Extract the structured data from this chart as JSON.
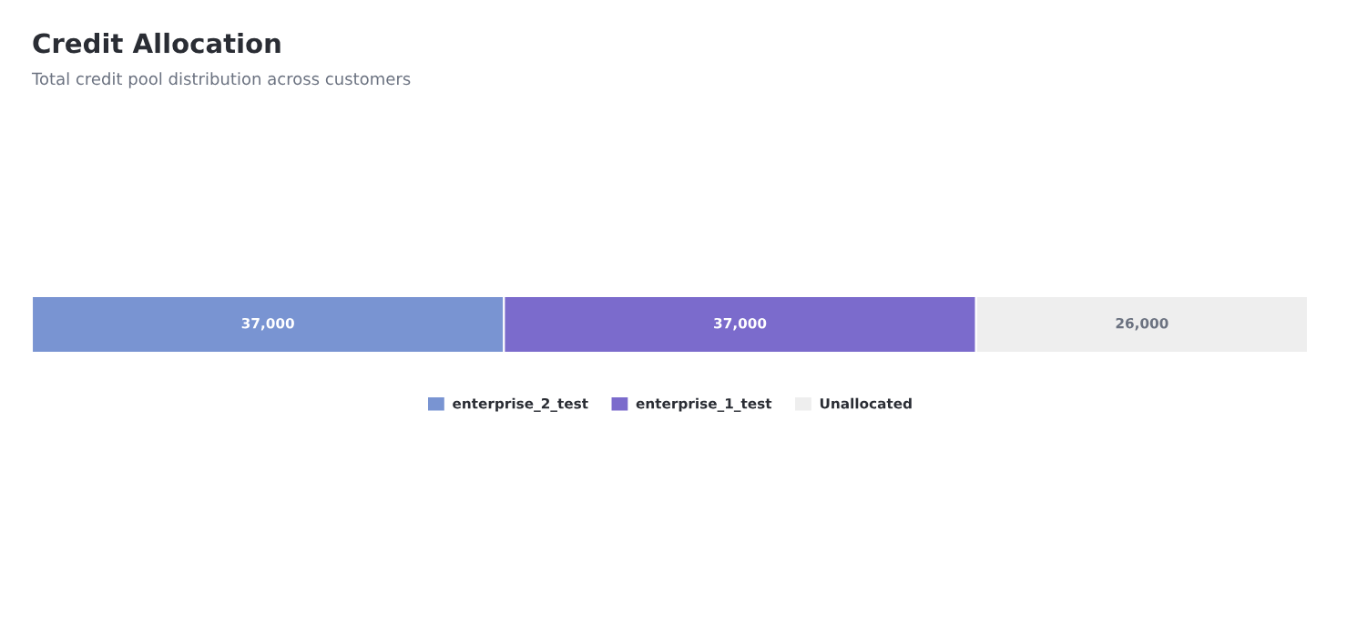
{
  "chart_data": {
    "type": "bar",
    "title": "Credit Allocation",
    "subtitle": "Total credit pool distribution across customers",
    "orientation": "horizontal",
    "stacked": true,
    "categories": [
      null
    ],
    "tick_labels": false,
    "legend": "bottom",
    "series": [
      {
        "name": "enterprise_2_test",
        "color": "#7994d2",
        "values": [
          37000
        ],
        "value_labels": [
          "37,000"
        ]
      },
      {
        "name": "enterprise_1_test",
        "color": "#7b6bcc",
        "values": [
          37000
        ],
        "value_labels": [
          "37,000"
        ]
      },
      {
        "name": "Unallocated",
        "color": "#eeeeee",
        "values": [
          26000
        ],
        "value_labels": [
          "26,000"
        ]
      }
    ]
  }
}
